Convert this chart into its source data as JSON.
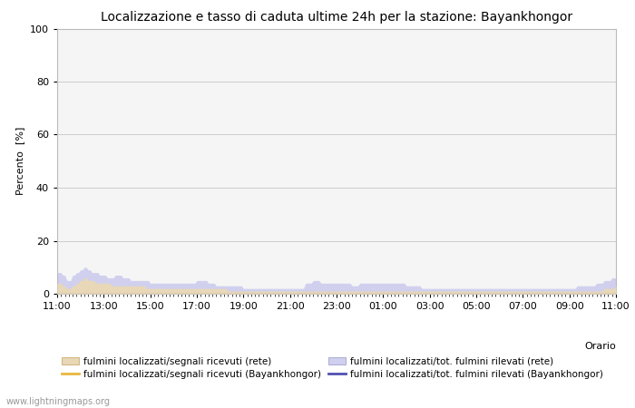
{
  "title": "Localizzazione e tasso di caduta ultime 24h per la stazione: Bayankhongor",
  "ylabel": "Percento  [%]",
  "xlabel_right": "Orario",
  "watermark": "www.lightningmaps.org",
  "yticks": [
    0,
    20,
    40,
    60,
    80,
    100
  ],
  "ytick_minor": [
    10,
    30,
    50,
    70,
    90
  ],
  "xtick_labels": [
    "11:00",
    "13:00",
    "15:00",
    "17:00",
    "19:00",
    "21:00",
    "23:00",
    "01:00",
    "03:00",
    "05:00",
    "07:00",
    "09:00",
    "11:00"
  ],
  "ylim": [
    0,
    100
  ],
  "bg_color": "#ffffff",
  "plot_bg_color": "#f5f5f5",
  "grid_color": "#cccccc",
  "fill_rete_color": "#e8d8b8",
  "fill_rete_edge_color": "#d4b882",
  "fill_blue_color": "#d0d0ee",
  "fill_blue_edge_color": "#b0b0d8",
  "line_orange_color": "#e8b840",
  "line_blue_color": "#5050b0",
  "legend_labels": [
    "fulmini localizzati/segnali ricevuti (rete)",
    "fulmini localizzati/segnali ricevuti (Bayankhongor)",
    "fulmini localizzati/tot. fulmini rilevati (rete)",
    "fulmini localizzati/tot. fulmini rilevati (Bayankhongor)"
  ],
  "num_points": 289,
  "blue_fill": [
    8,
    8,
    8,
    7,
    7,
    5,
    5,
    5,
    7,
    7,
    8,
    8,
    9,
    9,
    10,
    10,
    9,
    9,
    8,
    8,
    8,
    8,
    7,
    7,
    7,
    7,
    6,
    6,
    6,
    6,
    7,
    7,
    7,
    7,
    6,
    6,
    6,
    6,
    5,
    5,
    5,
    5,
    5,
    5,
    5,
    5,
    5,
    5,
    4,
    4,
    4,
    4,
    4,
    4,
    4,
    4,
    4,
    4,
    4,
    4,
    4,
    4,
    4,
    4,
    4,
    4,
    4,
    4,
    4,
    4,
    4,
    4,
    5,
    5,
    5,
    5,
    5,
    5,
    4,
    4,
    4,
    4,
    3,
    3,
    3,
    3,
    3,
    3,
    3,
    3,
    3,
    3,
    3,
    3,
    3,
    3,
    2,
    2,
    2,
    2,
    2,
    2,
    2,
    2,
    2,
    2,
    2,
    2,
    2,
    2,
    2,
    2,
    2,
    2,
    2,
    2,
    2,
    2,
    2,
    2,
    2,
    2,
    2,
    2,
    2,
    2,
    2,
    2,
    4,
    4,
    4,
    4,
    5,
    5,
    5,
    5,
    4,
    4,
    4,
    4,
    4,
    4,
    4,
    4,
    4,
    4,
    4,
    4,
    4,
    4,
    4,
    4,
    3,
    3,
    3,
    3,
    4,
    4,
    4,
    4,
    4,
    4,
    4,
    4,
    4,
    4,
    4,
    4,
    4,
    4,
    4,
    4,
    4,
    4,
    4,
    4,
    4,
    4,
    4,
    4,
    3,
    3,
    3,
    3,
    3,
    3,
    3,
    3,
    2,
    2,
    2,
    2,
    2,
    2,
    2,
    2,
    2,
    2,
    2,
    2,
    2,
    2,
    2,
    2,
    2,
    2,
    2,
    2,
    2,
    2,
    2,
    2,
    2,
    2,
    2,
    2,
    2,
    2,
    2,
    2,
    2,
    2,
    2,
    2,
    2,
    2,
    2,
    2,
    2,
    2,
    2,
    2,
    2,
    2,
    2,
    2,
    2,
    2,
    2,
    2,
    2,
    2,
    2,
    2,
    2,
    2,
    2,
    2,
    2,
    2,
    2,
    2,
    2,
    2,
    2,
    2,
    2,
    2,
    2,
    2,
    2,
    2,
    2,
    2,
    2,
    2,
    2,
    2,
    3,
    3,
    3,
    3,
    3,
    3,
    3,
    3,
    3,
    3,
    4,
    4,
    4,
    4,
    5,
    5,
    5,
    5,
    6,
    6,
    6
  ],
  "tan_fill": [
    4,
    4,
    4,
    3,
    3,
    2,
    2,
    2,
    3,
    3,
    4,
    4,
    5,
    5,
    6,
    6,
    5,
    5,
    5,
    5,
    4,
    4,
    4,
    4,
    4,
    4,
    4,
    4,
    3,
    3,
    3,
    3,
    3,
    3,
    3,
    3,
    3,
    3,
    3,
    3,
    3,
    3,
    3,
    3,
    3,
    3,
    2,
    2,
    2,
    2,
    2,
    2,
    2,
    2,
    2,
    2,
    2,
    2,
    2,
    2,
    2,
    2,
    2,
    2,
    2,
    2,
    2,
    2,
    2,
    2,
    2,
    2,
    2,
    2,
    2,
    2,
    2,
    2,
    2,
    2,
    2,
    2,
    2,
    2,
    2,
    2,
    2,
    2,
    1,
    1,
    1,
    1,
    1,
    1,
    1,
    1,
    1,
    1,
    1,
    1,
    1,
    1,
    1,
    1,
    1,
    1,
    1,
    1,
    1,
    1,
    1,
    1,
    1,
    1,
    1,
    1,
    1,
    1,
    1,
    1,
    1,
    1,
    1,
    1,
    1,
    1,
    1,
    1,
    1,
    1,
    1,
    1,
    1,
    1,
    1,
    1,
    1,
    1,
    1,
    1,
    1,
    1,
    1,
    1,
    1,
    1,
    1,
    1,
    1,
    1,
    1,
    1,
    1,
    1,
    1,
    1,
    1,
    1,
    1,
    1,
    1,
    1,
    1,
    1,
    1,
    1,
    1,
    1,
    1,
    1,
    1,
    1,
    1,
    1,
    1,
    1,
    1,
    1,
    1,
    1,
    1,
    1,
    1,
    1,
    1,
    1,
    1,
    1,
    1,
    1,
    1,
    1,
    1,
    1,
    1,
    1,
    1,
    1,
    1,
    1,
    1,
    1,
    1,
    1,
    1,
    1,
    1,
    1,
    1,
    1,
    1,
    1,
    1,
    1,
    1,
    1,
    1,
    1,
    1,
    1,
    1,
    1,
    1,
    1,
    1,
    1,
    1,
    1,
    1,
    1,
    1,
    1,
    1,
    1,
    1,
    1,
    1,
    1,
    1,
    1,
    1,
    1,
    1,
    1,
    1,
    1,
    1,
    1,
    1,
    1,
    1,
    1,
    1,
    1,
    1,
    1,
    1,
    1,
    1,
    1,
    1,
    1,
    1,
    1,
    1,
    1,
    1,
    1,
    1,
    1,
    1,
    1,
    1,
    1,
    1,
    1,
    1,
    1,
    1,
    1,
    1,
    1,
    2,
    2,
    2,
    2,
    2,
    2,
    3
  ]
}
